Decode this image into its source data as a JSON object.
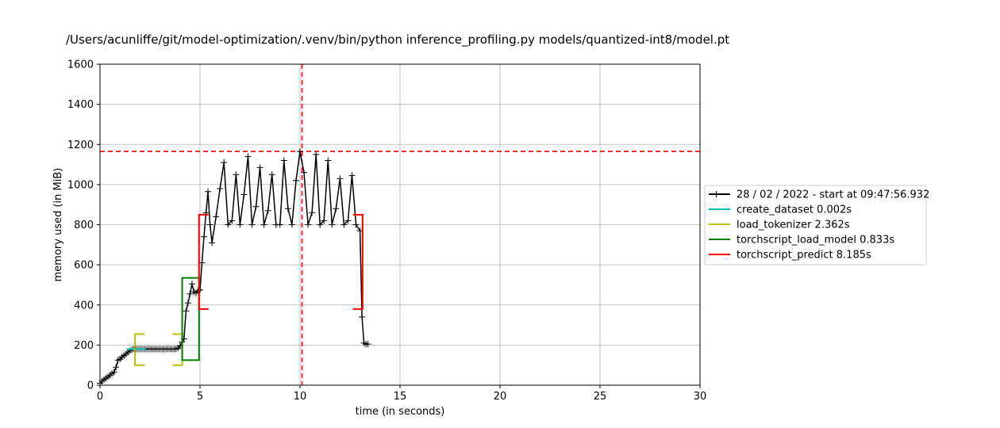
{
  "chart_data": {
    "type": "line",
    "title": "/Users/acunliffe/git/model-optimization/.venv/bin/python inference_profiling.py models/quantized-int8/model.pt",
    "xlabel": "time (in seconds)",
    "ylabel": "memory used (in MiB)",
    "xlim": [
      0,
      30
    ],
    "ylim": [
      0,
      1600
    ],
    "xticks": [
      "0",
      "5",
      "10",
      "15",
      "20",
      "25",
      "30"
    ],
    "yticks": [
      "0",
      "200",
      "400",
      "600",
      "800",
      "1000",
      "1200",
      "1400",
      "1600"
    ],
    "grid": true,
    "legend_position": "right",
    "max_memory_line": {
      "y": 1165,
      "color": "#ff0000"
    },
    "max_time_line": {
      "x": 10.1,
      "color": "#ff0000"
    },
    "series": [
      {
        "name": "28 / 02 / 2022 - start at 09:47:56.932",
        "color": "#000000",
        "marker": "+",
        "x": [
          0.0,
          0.1,
          0.2,
          0.3,
          0.4,
          0.5,
          0.6,
          0.7,
          0.8,
          0.9,
          1.0,
          1.1,
          1.2,
          1.3,
          1.4,
          1.5,
          1.6,
          1.7,
          1.8,
          1.9,
          2.0,
          2.1,
          2.2,
          2.3,
          2.4,
          2.5,
          2.6,
          2.7,
          2.8,
          2.9,
          3.0,
          3.1,
          3.2,
          3.3,
          3.4,
          3.5,
          3.6,
          3.7,
          3.8,
          3.9,
          4.0,
          4.1,
          4.2,
          4.3,
          4.4,
          4.5,
          4.6,
          4.7,
          4.8,
          4.9,
          5.0,
          5.1,
          5.2,
          5.3,
          5.4,
          5.5,
          5.6,
          5.8,
          6.0,
          6.2,
          6.4,
          6.6,
          6.8,
          7.0,
          7.2,
          7.4,
          7.6,
          7.8,
          8.0,
          8.2,
          8.4,
          8.6,
          8.8,
          9.0,
          9.2,
          9.4,
          9.6,
          9.8,
          10.0,
          10.2,
          10.4,
          10.6,
          10.8,
          11.0,
          11.2,
          11.4,
          11.6,
          11.8,
          12.0,
          12.2,
          12.4,
          12.6,
          12.8,
          13.0,
          13.1,
          13.2,
          13.3,
          13.4
        ],
        "y": [
          10,
          20,
          28,
          35,
          42,
          50,
          58,
          65,
          90,
          125,
          130,
          140,
          148,
          155,
          165,
          172,
          178,
          180,
          180,
          180,
          180,
          180,
          180,
          180,
          180,
          180,
          180,
          180,
          180,
          180,
          180,
          180,
          180,
          180,
          180,
          180,
          180,
          180,
          180,
          185,
          195,
          215,
          230,
          370,
          410,
          455,
          505,
          465,
          460,
          470,
          475,
          610,
          740,
          860,
          965,
          800,
          710,
          840,
          980,
          1110,
          800,
          820,
          1050,
          800,
          950,
          1140,
          800,
          890,
          1085,
          800,
          870,
          1050,
          800,
          800,
          1120,
          880,
          800,
          1020,
          1165,
          1060,
          800,
          860,
          1150,
          800,
          820,
          1120,
          800,
          880,
          1030,
          800,
          820,
          1045,
          800,
          770,
          340,
          210,
          205,
          205
        ]
      },
      {
        "name": "create_dataset 0.002s",
        "color": "#00bfbf",
        "start": 1.8,
        "end": 1.8,
        "ymin": 180,
        "ymax": 180
      },
      {
        "name": "load_tokenizer 2.362s",
        "color": "#bfbf00",
        "start": 1.75,
        "end": 4.11,
        "ymin": 100,
        "ymax": 255
      },
      {
        "name": "torchscript_load_model 0.833s",
        "color": "#008000",
        "start": 4.11,
        "end": 4.95,
        "ymin": 125,
        "ymax": 535
      },
      {
        "name": "torchscript_predict 8.185s",
        "color": "#ff0000",
        "start": 4.95,
        "end": 13.13,
        "ymin": 380,
        "ymax": 850
      }
    ]
  }
}
